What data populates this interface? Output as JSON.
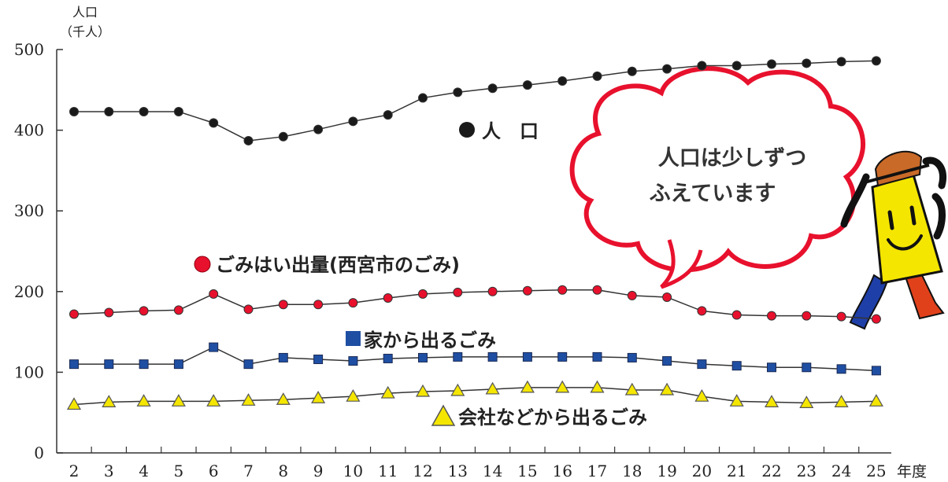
{
  "chart_data": {
    "type": "line",
    "ylabel_line1": "人口",
    "ylabel_line2": "（千人）",
    "xlabel": "年度",
    "ylim": [
      0,
      500
    ],
    "yticks": [
      0,
      100,
      200,
      300,
      400,
      500
    ],
    "x": [
      "2",
      "3",
      "4",
      "5",
      "6",
      "7",
      "8",
      "9",
      "10",
      "11",
      "12",
      "13",
      "14",
      "15",
      "16",
      "17",
      "18",
      "19",
      "20",
      "21",
      "22",
      "23",
      "24",
      "25"
    ],
    "series": [
      {
        "name": "人　口",
        "marker": "circle",
        "color": "#1a1a1a",
        "values": [
          423,
          423,
          423,
          423,
          409,
          387,
          392,
          401,
          411,
          419,
          440,
          447,
          452,
          456,
          461,
          467,
          473,
          476,
          480,
          480,
          482,
          483,
          485,
          486
        ]
      },
      {
        "name": "ごみはい出量(西宮市のごみ)",
        "marker": "circle",
        "color": "#e8112d",
        "values": [
          172,
          174,
          176,
          177,
          197,
          178,
          184,
          184,
          186,
          192,
          197,
          199,
          200,
          201,
          202,
          202,
          195,
          193,
          176,
          171,
          170,
          170,
          169,
          166
        ]
      },
      {
        "name": "家から出るごみ",
        "marker": "square",
        "color": "#1f4fa3",
        "values": [
          110,
          110,
          110,
          110,
          131,
          110,
          118,
          116,
          114,
          117,
          118,
          119,
          119,
          119,
          119,
          119,
          118,
          114,
          110,
          108,
          106,
          106,
          104,
          102
        ]
      },
      {
        "name": "会社などから出るごみ",
        "marker": "triangle",
        "color": "#f5e600",
        "values": [
          60,
          63,
          64,
          64,
          64,
          65,
          66,
          68,
          70,
          74,
          76,
          77,
          79,
          81,
          81,
          81,
          78,
          78,
          70,
          64,
          63,
          62,
          63,
          64
        ]
      }
    ],
    "bubble_text": [
      "人口は少しずつ",
      "ふえています"
    ]
  }
}
